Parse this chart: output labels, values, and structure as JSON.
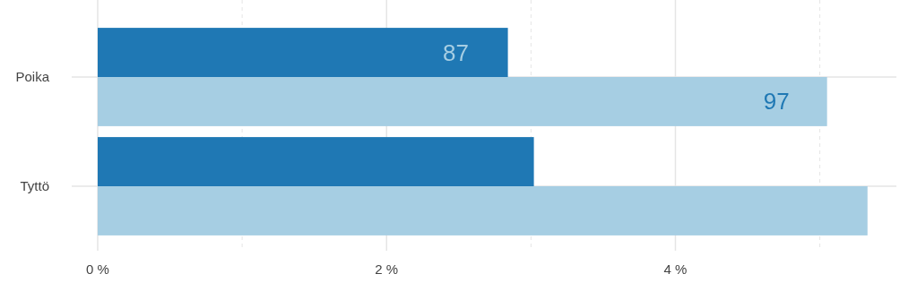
{
  "chart_data": {
    "type": "bar",
    "orientation": "horizontal",
    "categories": [
      "Poika",
      "Tyttö"
    ],
    "series": [
      {
        "color": "#1f78b4",
        "values": [
          2.84,
          3.02
        ]
      },
      {
        "color": "#a6cee3",
        "values": [
          5.05,
          5.33
        ]
      }
    ],
    "annotations": [
      {
        "text": "87",
        "x": 2.48,
        "y": "Poika"
      },
      {
        "text": "97",
        "x": 4.7,
        "y": "Poika"
      }
    ],
    "xlim": [
      -0.18,
      5.53
    ],
    "xticks": [
      {
        "value": 0,
        "label": "0 %"
      },
      {
        "value": 1,
        "label": null
      },
      {
        "value": 2,
        "label": "2 %"
      },
      {
        "value": 3,
        "label": null
      },
      {
        "value": 4,
        "label": "4 %"
      },
      {
        "value": 5,
        "label": null
      }
    ],
    "grid": true
  }
}
